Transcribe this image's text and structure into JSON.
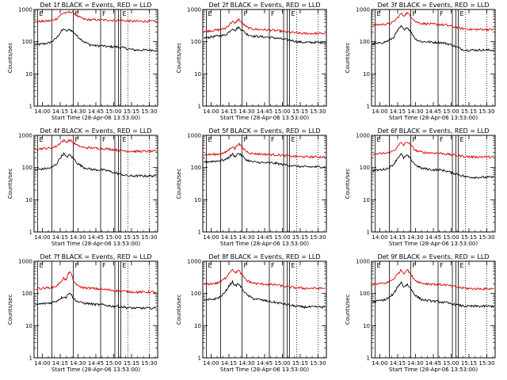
{
  "colors": {
    "events": "#000000",
    "lld": "#dd0000",
    "frame": "#000000"
  },
  "time_axis": {
    "tick_labels": [
      "14:00",
      "14:15",
      "14:30",
      "14:45",
      "15:00",
      "15:15",
      "15:30"
    ],
    "tick_minutes": [
      0,
      15,
      30,
      45,
      60,
      75,
      90
    ],
    "range_minutes": [
      -7,
      97
    ],
    "xlabel": "Start Time (28-Apr-06 13:53:00)"
  },
  "count_axis": {
    "ylabel": "Counts/sec",
    "scale": "log",
    "range": [
      1,
      1000
    ],
    "tick_labels": [
      "1",
      "10",
      "100",
      "1000"
    ]
  },
  "time_markers": {
    "solid": [
      {
        "minute": -4,
        "label": "E"
      },
      {
        "minute": 8,
        "label": ""
      },
      {
        "minute": 26,
        "label": "F"
      },
      {
        "minute": 49,
        "label": "F"
      },
      {
        "minute": 61,
        "label": ""
      },
      {
        "minute": 64,
        "label": ""
      },
      {
        "minute": 66,
        "label": "E"
      }
    ],
    "dotted": [
      72,
      90
    ]
  },
  "chart_data": [
    {
      "type": "line",
      "title": "Det 1f BLACK = Events, RED = LLD",
      "xlabel": "Start Time (28-Apr-06 13:53:00)",
      "ylabel": "Counts/sec",
      "ylim": [
        1,
        1000
      ],
      "yscale": "log",
      "x": [
        -6,
        0,
        5,
        8,
        12,
        15,
        18,
        20,
        23,
        26,
        30,
        35,
        40,
        45,
        50,
        55,
        60,
        64,
        68,
        72,
        78,
        84,
        90,
        96
      ],
      "series": [
        {
          "name": "Events",
          "values": [
            80,
            85,
            90,
            100,
            130,
            190,
            250,
            210,
            240,
            200,
            140,
            100,
            80,
            75,
            75,
            70,
            70,
            68,
            65,
            60,
            55,
            55,
            55,
            55
          ]
        },
        {
          "name": "LLD",
          "values": [
            420,
            430,
            440,
            450,
            520,
            650,
            800,
            760,
            850,
            800,
            600,
            500,
            480,
            480,
            470,
            470,
            460,
            460,
            450,
            440,
            430,
            430,
            430,
            430
          ]
        }
      ]
    },
    {
      "type": "line",
      "title": "Det 2f BLACK = Events, RED = LLD",
      "xlabel": "Start Time (28-Apr-06 13:53:00)",
      "ylabel": "Counts/sec",
      "ylim": [
        1,
        1000
      ],
      "yscale": "log",
      "x": [
        -6,
        0,
        5,
        8,
        12,
        15,
        18,
        20,
        23,
        26,
        30,
        35,
        40,
        45,
        50,
        55,
        60,
        64,
        68,
        72,
        78,
        84,
        90,
        96
      ],
      "series": [
        {
          "name": "Events",
          "values": [
            130,
            140,
            150,
            155,
            160,
            200,
            260,
            220,
            280,
            230,
            170,
            150,
            145,
            140,
            135,
            130,
            120,
            115,
            110,
            100,
            95,
            95,
            95,
            95
          ]
        },
        {
          "name": "LLD",
          "values": [
            210,
            220,
            230,
            240,
            260,
            330,
            430,
            360,
            500,
            380,
            280,
            250,
            240,
            235,
            230,
            220,
            210,
            200,
            195,
            185,
            180,
            180,
            180,
            180
          ]
        }
      ]
    },
    {
      "type": "line",
      "title": "Det 3f BLACK = Events, RED = LLD",
      "xlabel": "Start Time (28-Apr-06 13:53:00)",
      "ylabel": "Counts/sec",
      "ylim": [
        1,
        1000
      ],
      "yscale": "log",
      "x": [
        -6,
        0,
        5,
        8,
        12,
        15,
        18,
        20,
        23,
        26,
        30,
        35,
        40,
        45,
        50,
        55,
        60,
        64,
        68,
        72,
        78,
        84,
        90,
        96
      ],
      "series": [
        {
          "name": "Events",
          "values": [
            85,
            90,
            100,
            110,
            140,
            220,
            300,
            240,
            280,
            200,
            120,
            100,
            100,
            95,
            95,
            90,
            80,
            70,
            60,
            55,
            55,
            55,
            55,
            55
          ]
        },
        {
          "name": "LLD",
          "values": [
            330,
            340,
            350,
            360,
            420,
            560,
            750,
            640,
            780,
            620,
            420,
            370,
            360,
            350,
            340,
            330,
            300,
            280,
            260,
            250,
            240,
            240,
            240,
            240
          ]
        }
      ]
    },
    {
      "type": "line",
      "title": "Det 4f BLACK = Events, RED = LLD",
      "xlabel": "Start Time (28-Apr-06 13:53:00)",
      "ylabel": "Counts/sec",
      "ylim": [
        1,
        1000
      ],
      "yscale": "log",
      "x": [
        -6,
        0,
        5,
        8,
        12,
        15,
        18,
        20,
        23,
        26,
        30,
        35,
        40,
        45,
        50,
        55,
        60,
        64,
        68,
        72,
        78,
        84,
        90,
        96
      ],
      "series": [
        {
          "name": "Events",
          "values": [
            85,
            90,
            95,
            100,
            130,
            200,
            270,
            210,
            250,
            190,
            130,
            100,
            90,
            85,
            85,
            80,
            70,
            65,
            60,
            55,
            55,
            55,
            55,
            55
          ]
        },
        {
          "name": "LLD",
          "values": [
            380,
            390,
            400,
            410,
            460,
            580,
            700,
            620,
            720,
            600,
            470,
            420,
            410,
            400,
            390,
            380,
            360,
            345,
            335,
            325,
            320,
            320,
            320,
            320
          ]
        }
      ]
    },
    {
      "type": "line",
      "title": "Det 5f BLACK = Events, RED = LLD",
      "xlabel": "Start Time (28-Apr-06 13:53:00)",
      "ylabel": "Counts/sec",
      "ylim": [
        1,
        1000
      ],
      "yscale": "log",
      "x": [
        -6,
        0,
        5,
        8,
        12,
        15,
        18,
        20,
        23,
        26,
        30,
        35,
        40,
        45,
        50,
        55,
        60,
        64,
        68,
        72,
        78,
        84,
        90,
        96
      ],
      "series": [
        {
          "name": "Events",
          "values": [
            150,
            155,
            160,
            165,
            175,
            210,
            260,
            220,
            280,
            230,
            170,
            150,
            145,
            140,
            140,
            135,
            125,
            120,
            115,
            110,
            105,
            105,
            105,
            105
          ]
        },
        {
          "name": "LLD",
          "values": [
            250,
            255,
            260,
            270,
            290,
            360,
            460,
            380,
            560,
            420,
            310,
            270,
            265,
            260,
            255,
            250,
            240,
            230,
            225,
            220,
            215,
            215,
            215,
            215
          ]
        }
      ]
    },
    {
      "type": "line",
      "title": "Det 6f BLACK = Events, RED = LLD",
      "xlabel": "Start Time (28-Apr-06 13:53:00)",
      "ylabel": "Counts/sec",
      "ylim": [
        1,
        1000
      ],
      "yscale": "log",
      "x": [
        -6,
        0,
        5,
        8,
        12,
        15,
        18,
        20,
        23,
        26,
        30,
        35,
        40,
        45,
        50,
        55,
        60,
        64,
        68,
        72,
        78,
        84,
        90,
        96
      ],
      "series": [
        {
          "name": "Events",
          "values": [
            80,
            85,
            90,
            100,
            130,
            200,
            260,
            200,
            240,
            180,
            120,
            95,
            90,
            85,
            85,
            80,
            70,
            65,
            58,
            52,
            50,
            50,
            50,
            50
          ]
        },
        {
          "name": "LLD",
          "values": [
            260,
            270,
            280,
            290,
            340,
            450,
            600,
            500,
            640,
            480,
            340,
            300,
            290,
            285,
            280,
            270,
            250,
            240,
            230,
            220,
            215,
            215,
            215,
            215
          ]
        }
      ]
    },
    {
      "type": "line",
      "title": "Det 7f BLACK = Events, RED = LLD",
      "xlabel": "Start Time (28-Apr-06 13:53:00)",
      "ylabel": "Counts/sec",
      "ylim": [
        1,
        1000
      ],
      "yscale": "log",
      "x": [
        -6,
        0,
        5,
        8,
        12,
        15,
        18,
        20,
        23,
        26,
        30,
        35,
        40,
        45,
        50,
        55,
        60,
        64,
        68,
        72,
        78,
        84,
        90,
        96
      ],
      "series": [
        {
          "name": "Events",
          "values": [
            45,
            48,
            50,
            52,
            58,
            70,
            80,
            75,
            110,
            70,
            55,
            50,
            48,
            45,
            45,
            42,
            40,
            40,
            38,
            36,
            35,
            35,
            35,
            35
          ]
        },
        {
          "name": "LLD",
          "values": [
            140,
            145,
            150,
            155,
            170,
            220,
            300,
            250,
            500,
            240,
            170,
            150,
            145,
            140,
            135,
            130,
            125,
            120,
            118,
            115,
            110,
            110,
            110,
            110
          ]
        }
      ]
    },
    {
      "type": "line",
      "title": "Det 8f BLACK = Events, RED = LLD",
      "xlabel": "Start Time (28-Apr-06 13:53:00)",
      "ylabel": "Counts/sec",
      "ylim": [
        1,
        1000
      ],
      "yscale": "log",
      "x": [
        -6,
        0,
        5,
        8,
        12,
        15,
        18,
        20,
        23,
        26,
        30,
        35,
        40,
        45,
        50,
        55,
        60,
        64,
        68,
        72,
        78,
        84,
        90,
        96
      ],
      "series": [
        {
          "name": "Events",
          "values": [
            60,
            65,
            70,
            80,
            110,
            170,
            230,
            170,
            200,
            140,
            90,
            70,
            65,
            60,
            55,
            52,
            48,
            45,
            42,
            40,
            38,
            38,
            38,
            38
          ]
        },
        {
          "name": "LLD",
          "values": [
            190,
            200,
            210,
            230,
            300,
            420,
            580,
            430,
            520,
            370,
            250,
            210,
            200,
            195,
            190,
            185,
            170,
            160,
            155,
            150,
            145,
            145,
            145,
            145
          ]
        }
      ]
    },
    {
      "type": "line",
      "title": "Det 9f BLACK = Events, RED = LLD",
      "xlabel": "Start Time (28-Apr-06 13:53:00)",
      "ylabel": "Counts/sec",
      "ylim": [
        1,
        1000
      ],
      "yscale": "log",
      "x": [
        -6,
        0,
        5,
        8,
        12,
        15,
        18,
        20,
        23,
        26,
        30,
        35,
        40,
        45,
        50,
        55,
        60,
        64,
        68,
        72,
        78,
        84,
        90,
        96
      ],
      "series": [
        {
          "name": "Events",
          "values": [
            55,
            60,
            65,
            75,
            100,
            160,
            220,
            160,
            190,
            140,
            85,
            65,
            60,
            58,
            55,
            52,
            48,
            45,
            42,
            40,
            40,
            40,
            40,
            40
          ]
        },
        {
          "name": "LLD",
          "values": [
            190,
            200,
            210,
            230,
            290,
            400,
            540,
            420,
            560,
            380,
            250,
            210,
            200,
            195,
            190,
            185,
            170,
            160,
            150,
            145,
            140,
            140,
            140,
            140
          ]
        }
      ]
    }
  ]
}
